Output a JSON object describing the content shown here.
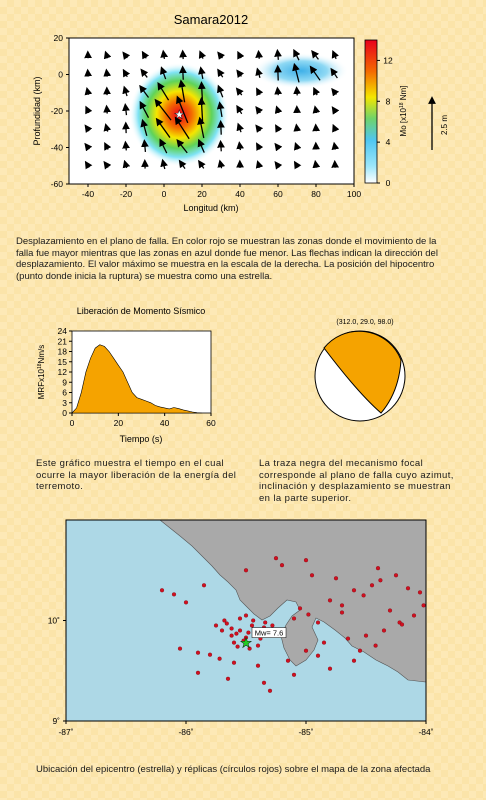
{
  "title": "Samara2012",
  "chart_data": [
    {
      "type": "heatmap",
      "title": "Samara2012",
      "xlabel": "Longitud (km)",
      "ylabel": "Profundidad (km)",
      "xlim": [
        -50,
        100
      ],
      "ylim": [
        -60,
        20
      ],
      "xticks": [
        "-40",
        "-20",
        "0",
        "20",
        "40",
        "60",
        "80",
        "100"
      ],
      "yticks": [
        "20",
        "0",
        "-20",
        "-40",
        "-60"
      ],
      "colorbar": {
        "label": "Mo [x10",
        "label_sup": "18",
        "label_unit": " Nm]",
        "ticks": [
          "0",
          "4",
          "8",
          "12"
        ],
        "range": [
          0,
          14
        ]
      },
      "scale_label": "2.5 m",
      "slip_patches": [
        {
          "x": 8,
          "y": -22,
          "peak": 14
        },
        {
          "x": 72,
          "y": 2,
          "peak": 5
        }
      ],
      "star": {
        "x": 8,
        "y": -22
      },
      "colors": {
        "high": "#e8001c",
        "mid": "#f5e600",
        "low": "#7fe3f5",
        "zero": "#ffffff"
      }
    },
    {
      "type": "area",
      "title": "Liberación de Momento Sísmico",
      "xlabel": "Tiempo (s)",
      "ylabel": "MRFx10",
      "ylabel_sup": "18",
      "ylabel_unit": "Nm/s",
      "xlim": [
        0,
        60
      ],
      "ylim": [
        0,
        24
      ],
      "xticks": [
        "0",
        "20",
        "40",
        "60"
      ],
      "yticks": [
        "0",
        "3",
        "6",
        "9",
        "12",
        "15",
        "18",
        "21",
        "24"
      ],
      "x": [
        0,
        2,
        4,
        6,
        8,
        10,
        12,
        14,
        16,
        18,
        20,
        22,
        24,
        26,
        28,
        30,
        32,
        34,
        36,
        38,
        40,
        42,
        44,
        46,
        48,
        50,
        52,
        54,
        56
      ],
      "values": [
        0,
        1.5,
        6,
        12,
        16,
        19,
        20,
        19.5,
        18,
        16,
        14,
        12,
        9,
        6,
        4.5,
        4,
        3.5,
        3,
        2.2,
        1.8,
        1.5,
        1.2,
        1.6,
        1.3,
        0.9,
        0.6,
        0.3,
        0.1,
        0
      ],
      "fill": "#f5a300"
    },
    {
      "type": "scatter",
      "xlabel": "",
      "xlim": [
        -87,
        -84
      ],
      "ylim": [
        9,
        11
      ],
      "xticks": [
        "-87˚",
        "-86˚",
        "-85˚",
        "-84˚"
      ],
      "yticks": [
        "9˚",
        "10˚"
      ],
      "epicenter": {
        "x": -85.5,
        "y": 9.78,
        "label": "Mw= 7.6"
      },
      "aftershocks_x": [
        -85.75,
        -85.62,
        -85.55,
        -85.48,
        -85.42,
        -85.38,
        -85.5,
        -85.58,
        -85.66,
        -85.7,
        -85.45,
        -85.35,
        -85.3,
        -85.52,
        -85.6,
        -85.57,
        -85.47,
        -85.4,
        -85.62,
        -85.68,
        -85.55,
        -85.5,
        -85.44,
        -85.34,
        -85.28,
        -85.2,
        -85.1,
        -85.05,
        -84.98,
        -84.9,
        -84.8,
        -84.7,
        -84.6,
        -84.52,
        -84.45,
        -84.38,
        -84.25,
        -84.15,
        -84.05,
        -84.02,
        -84.1,
        -84.22,
        -84.35,
        -84.5,
        -84.65,
        -84.85,
        -85.0,
        -85.15,
        -85.4,
        -85.6,
        -85.72,
        -85.8,
        -85.9,
        -86.0,
        -86.1,
        -86.2,
        -85.85,
        -85.5,
        -85.2,
        -84.95,
        -84.75,
        -84.4,
        -84.3,
        -84.2,
        -84.6,
        -84.8,
        -85.3,
        -85.65,
        -85.9,
        -86.05,
        -85.35,
        -85.1,
        -84.9,
        -84.55,
        -84.42,
        -85.25,
        -85.0,
        -84.7
      ],
      "aftershocks_y": [
        9.95,
        9.92,
        9.9,
        9.88,
        9.85,
        9.82,
        9.83,
        9.87,
        9.97,
        9.9,
        9.95,
        9.93,
        9.88,
        9.8,
        9.78,
        9.74,
        9.72,
        9.75,
        9.85,
        10.0,
        10.02,
        10.05,
        10.0,
        9.98,
        9.95,
        9.9,
        10.02,
        10.12,
        10.06,
        9.98,
        10.2,
        10.15,
        10.3,
        10.25,
        10.35,
        10.4,
        10.45,
        10.32,
        10.28,
        10.15,
        10.05,
        9.98,
        9.9,
        9.85,
        9.82,
        9.78,
        9.7,
        9.6,
        9.55,
        9.58,
        9.62,
        9.66,
        9.68,
        10.18,
        10.26,
        10.3,
        10.35,
        10.5,
        10.55,
        10.45,
        10.42,
        10.52,
        10.1,
        9.96,
        9.6,
        9.52,
        9.3,
        9.42,
        9.48,
        9.72,
        9.38,
        9.46,
        9.65,
        9.7,
        9.75,
        10.62,
        10.6,
        10.08
      ],
      "colors": {
        "sea": "#add8e6",
        "land": "#a9a9a9",
        "dot": "#d01020",
        "star": "#22cc22"
      }
    }
  ],
  "captions": {
    "slip": "Desplazamiento en el plano de falla.  En color rojo se muestran las zonas donde el movimiento de la falla fue mayor mientras que las zonas en azul donde fue menor.  Las flechas indican la dirección del desplazamiento. El valor máximo se muestra en la escala de la derecha.  La posición del hipocentro (punto donde inicia la ruptura) se muestra como una estrella.",
    "mrf": "Este gráfico muestra el tiempo en el cual ocurre la mayor liberación de la energía del terremoto.",
    "mech": "La traza negra del mecanismo focal corresponde al plano de falla cuyo azimut, inclinación y desplazamiento se muestran en la parte superior.",
    "map": "Ubicación del epicentro (estrella) y réplicas (círculos rojos) sobre el mapa de la zona afectada"
  },
  "mechanism": {
    "label": "(312.0,  29.0,  98.0)",
    "fill": "#f5a300"
  }
}
